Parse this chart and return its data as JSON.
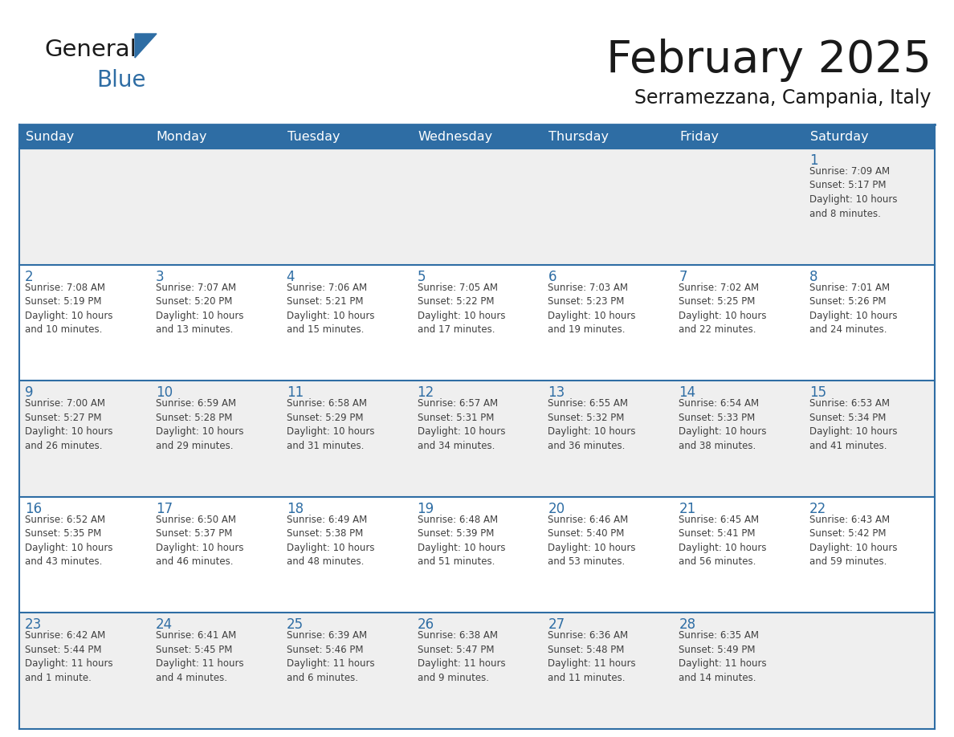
{
  "title": "February 2025",
  "subtitle": "Serramezzana, Campania, Italy",
  "header_bg": "#2E6DA4",
  "header_text": "#FFFFFF",
  "cell_bg_gray": "#EFEFEF",
  "cell_bg_white": "#FFFFFF",
  "day_number_color": "#2E6DA4",
  "cell_text_color": "#404040",
  "grid_line_color": "#2E6DA4",
  "days_of_week": [
    "Sunday",
    "Monday",
    "Tuesday",
    "Wednesday",
    "Thursday",
    "Friday",
    "Saturday"
  ],
  "week_row_bg": [
    "#EFEFEF",
    "#FFFFFF",
    "#EFEFEF",
    "#FFFFFF",
    "#EFEFEF"
  ],
  "weeks": [
    [
      {
        "day": null,
        "info": null
      },
      {
        "day": null,
        "info": null
      },
      {
        "day": null,
        "info": null
      },
      {
        "day": null,
        "info": null
      },
      {
        "day": null,
        "info": null
      },
      {
        "day": null,
        "info": null
      },
      {
        "day": "1",
        "info": "Sunrise: 7:09 AM\nSunset: 5:17 PM\nDaylight: 10 hours\nand 8 minutes."
      }
    ],
    [
      {
        "day": "2",
        "info": "Sunrise: 7:08 AM\nSunset: 5:19 PM\nDaylight: 10 hours\nand 10 minutes."
      },
      {
        "day": "3",
        "info": "Sunrise: 7:07 AM\nSunset: 5:20 PM\nDaylight: 10 hours\nand 13 minutes."
      },
      {
        "day": "4",
        "info": "Sunrise: 7:06 AM\nSunset: 5:21 PM\nDaylight: 10 hours\nand 15 minutes."
      },
      {
        "day": "5",
        "info": "Sunrise: 7:05 AM\nSunset: 5:22 PM\nDaylight: 10 hours\nand 17 minutes."
      },
      {
        "day": "6",
        "info": "Sunrise: 7:03 AM\nSunset: 5:23 PM\nDaylight: 10 hours\nand 19 minutes."
      },
      {
        "day": "7",
        "info": "Sunrise: 7:02 AM\nSunset: 5:25 PM\nDaylight: 10 hours\nand 22 minutes."
      },
      {
        "day": "8",
        "info": "Sunrise: 7:01 AM\nSunset: 5:26 PM\nDaylight: 10 hours\nand 24 minutes."
      }
    ],
    [
      {
        "day": "9",
        "info": "Sunrise: 7:00 AM\nSunset: 5:27 PM\nDaylight: 10 hours\nand 26 minutes."
      },
      {
        "day": "10",
        "info": "Sunrise: 6:59 AM\nSunset: 5:28 PM\nDaylight: 10 hours\nand 29 minutes."
      },
      {
        "day": "11",
        "info": "Sunrise: 6:58 AM\nSunset: 5:29 PM\nDaylight: 10 hours\nand 31 minutes."
      },
      {
        "day": "12",
        "info": "Sunrise: 6:57 AM\nSunset: 5:31 PM\nDaylight: 10 hours\nand 34 minutes."
      },
      {
        "day": "13",
        "info": "Sunrise: 6:55 AM\nSunset: 5:32 PM\nDaylight: 10 hours\nand 36 minutes."
      },
      {
        "day": "14",
        "info": "Sunrise: 6:54 AM\nSunset: 5:33 PM\nDaylight: 10 hours\nand 38 minutes."
      },
      {
        "day": "15",
        "info": "Sunrise: 6:53 AM\nSunset: 5:34 PM\nDaylight: 10 hours\nand 41 minutes."
      }
    ],
    [
      {
        "day": "16",
        "info": "Sunrise: 6:52 AM\nSunset: 5:35 PM\nDaylight: 10 hours\nand 43 minutes."
      },
      {
        "day": "17",
        "info": "Sunrise: 6:50 AM\nSunset: 5:37 PM\nDaylight: 10 hours\nand 46 minutes."
      },
      {
        "day": "18",
        "info": "Sunrise: 6:49 AM\nSunset: 5:38 PM\nDaylight: 10 hours\nand 48 minutes."
      },
      {
        "day": "19",
        "info": "Sunrise: 6:48 AM\nSunset: 5:39 PM\nDaylight: 10 hours\nand 51 minutes."
      },
      {
        "day": "20",
        "info": "Sunrise: 6:46 AM\nSunset: 5:40 PM\nDaylight: 10 hours\nand 53 minutes."
      },
      {
        "day": "21",
        "info": "Sunrise: 6:45 AM\nSunset: 5:41 PM\nDaylight: 10 hours\nand 56 minutes."
      },
      {
        "day": "22",
        "info": "Sunrise: 6:43 AM\nSunset: 5:42 PM\nDaylight: 10 hours\nand 59 minutes."
      }
    ],
    [
      {
        "day": "23",
        "info": "Sunrise: 6:42 AM\nSunset: 5:44 PM\nDaylight: 11 hours\nand 1 minute."
      },
      {
        "day": "24",
        "info": "Sunrise: 6:41 AM\nSunset: 5:45 PM\nDaylight: 11 hours\nand 4 minutes."
      },
      {
        "day": "25",
        "info": "Sunrise: 6:39 AM\nSunset: 5:46 PM\nDaylight: 11 hours\nand 6 minutes."
      },
      {
        "day": "26",
        "info": "Sunrise: 6:38 AM\nSunset: 5:47 PM\nDaylight: 11 hours\nand 9 minutes."
      },
      {
        "day": "27",
        "info": "Sunrise: 6:36 AM\nSunset: 5:48 PM\nDaylight: 11 hours\nand 11 minutes."
      },
      {
        "day": "28",
        "info": "Sunrise: 6:35 AM\nSunset: 5:49 PM\nDaylight: 11 hours\nand 14 minutes."
      },
      {
        "day": null,
        "info": null
      }
    ]
  ]
}
